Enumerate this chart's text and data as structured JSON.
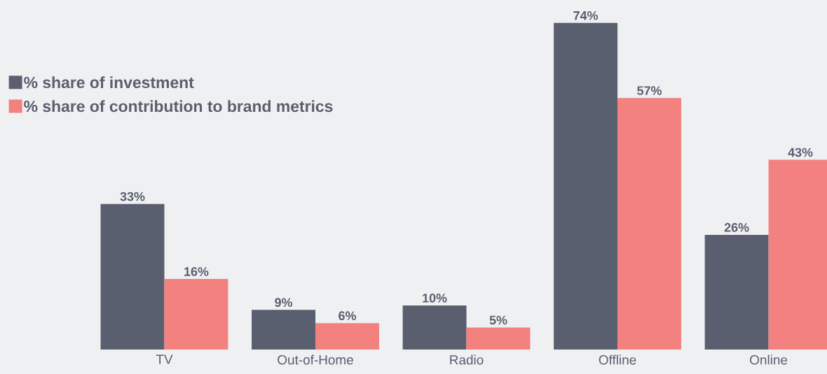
{
  "chart_data": {
    "type": "bar",
    "categories": [
      "TV",
      "Out-of-Home",
      "Radio",
      "Offline",
      "Online"
    ],
    "series": [
      {
        "name": "% share of investment",
        "color": "#5a5f70",
        "values": [
          33,
          9,
          10,
          74,
          26
        ],
        "value_labels": [
          "33%",
          "9%",
          "10%",
          "74%",
          "26%"
        ]
      },
      {
        "name": "% share of contribution to brand metrics",
        "color": "#f2817f",
        "values": [
          16,
          6,
          5,
          57,
          43
        ],
        "value_labels": [
          "16%",
          "6%",
          "5%",
          "57%",
          "43%"
        ]
      }
    ],
    "legend": "top left",
    "grid": false
  }
}
